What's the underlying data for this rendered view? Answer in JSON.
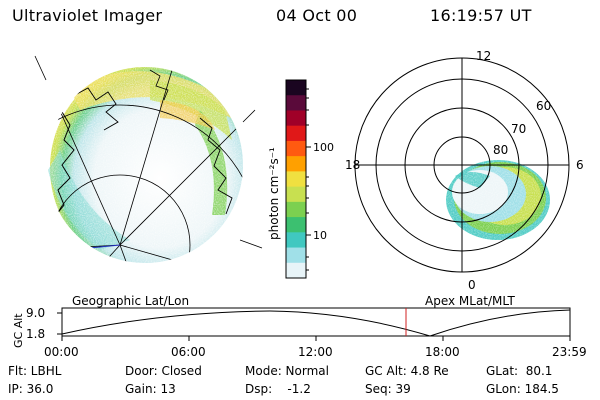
{
  "header": {
    "title": "Ultraviolet Imager",
    "date": "04 Oct 00",
    "time": "16:19:57 UT"
  },
  "colorbar": {
    "unit_label": "photon cm⁻²s⁻¹",
    "tick_labels": [
      "100",
      "10"
    ],
    "colors": [
      "#1a0520",
      "#5a0a3a",
      "#a00028",
      "#e01818",
      "#ff5a10",
      "#ffa000",
      "#f0e040",
      "#c8e050",
      "#7cd050",
      "#3cc070",
      "#40c8c0",
      "#a0e0e8",
      "#e8f4f8"
    ]
  },
  "polar_plot": {
    "mlt_labels": [
      "12",
      "18",
      "6",
      "0"
    ],
    "lat_labels": [
      "60",
      "70",
      "80"
    ]
  },
  "panel_labels": {
    "left": "Geographic Lat/Lon",
    "right": "Apex MLat/MLT"
  },
  "altitude_plot": {
    "ylabel": "GC Alt",
    "y_ticks": [
      "9.0",
      "1.8"
    ],
    "x_ticks": [
      "00:00",
      "06:00",
      "12:00",
      "18:00",
      "23:59"
    ],
    "marker_color": "#d02020"
  },
  "info": {
    "filter": "Flt: LBHL",
    "ip": "IP: 36.0",
    "door": "Door: Closed",
    "gain": "Gain: 13",
    "mode": "Mode: Normal",
    "dsp": "Dsp:    -1.2",
    "gc_alt": "GC Alt: 4.8 Re",
    "seq": "Seq: 39",
    "glat": "GLat:  80.1",
    "glon": "GLon: 184.5"
  }
}
